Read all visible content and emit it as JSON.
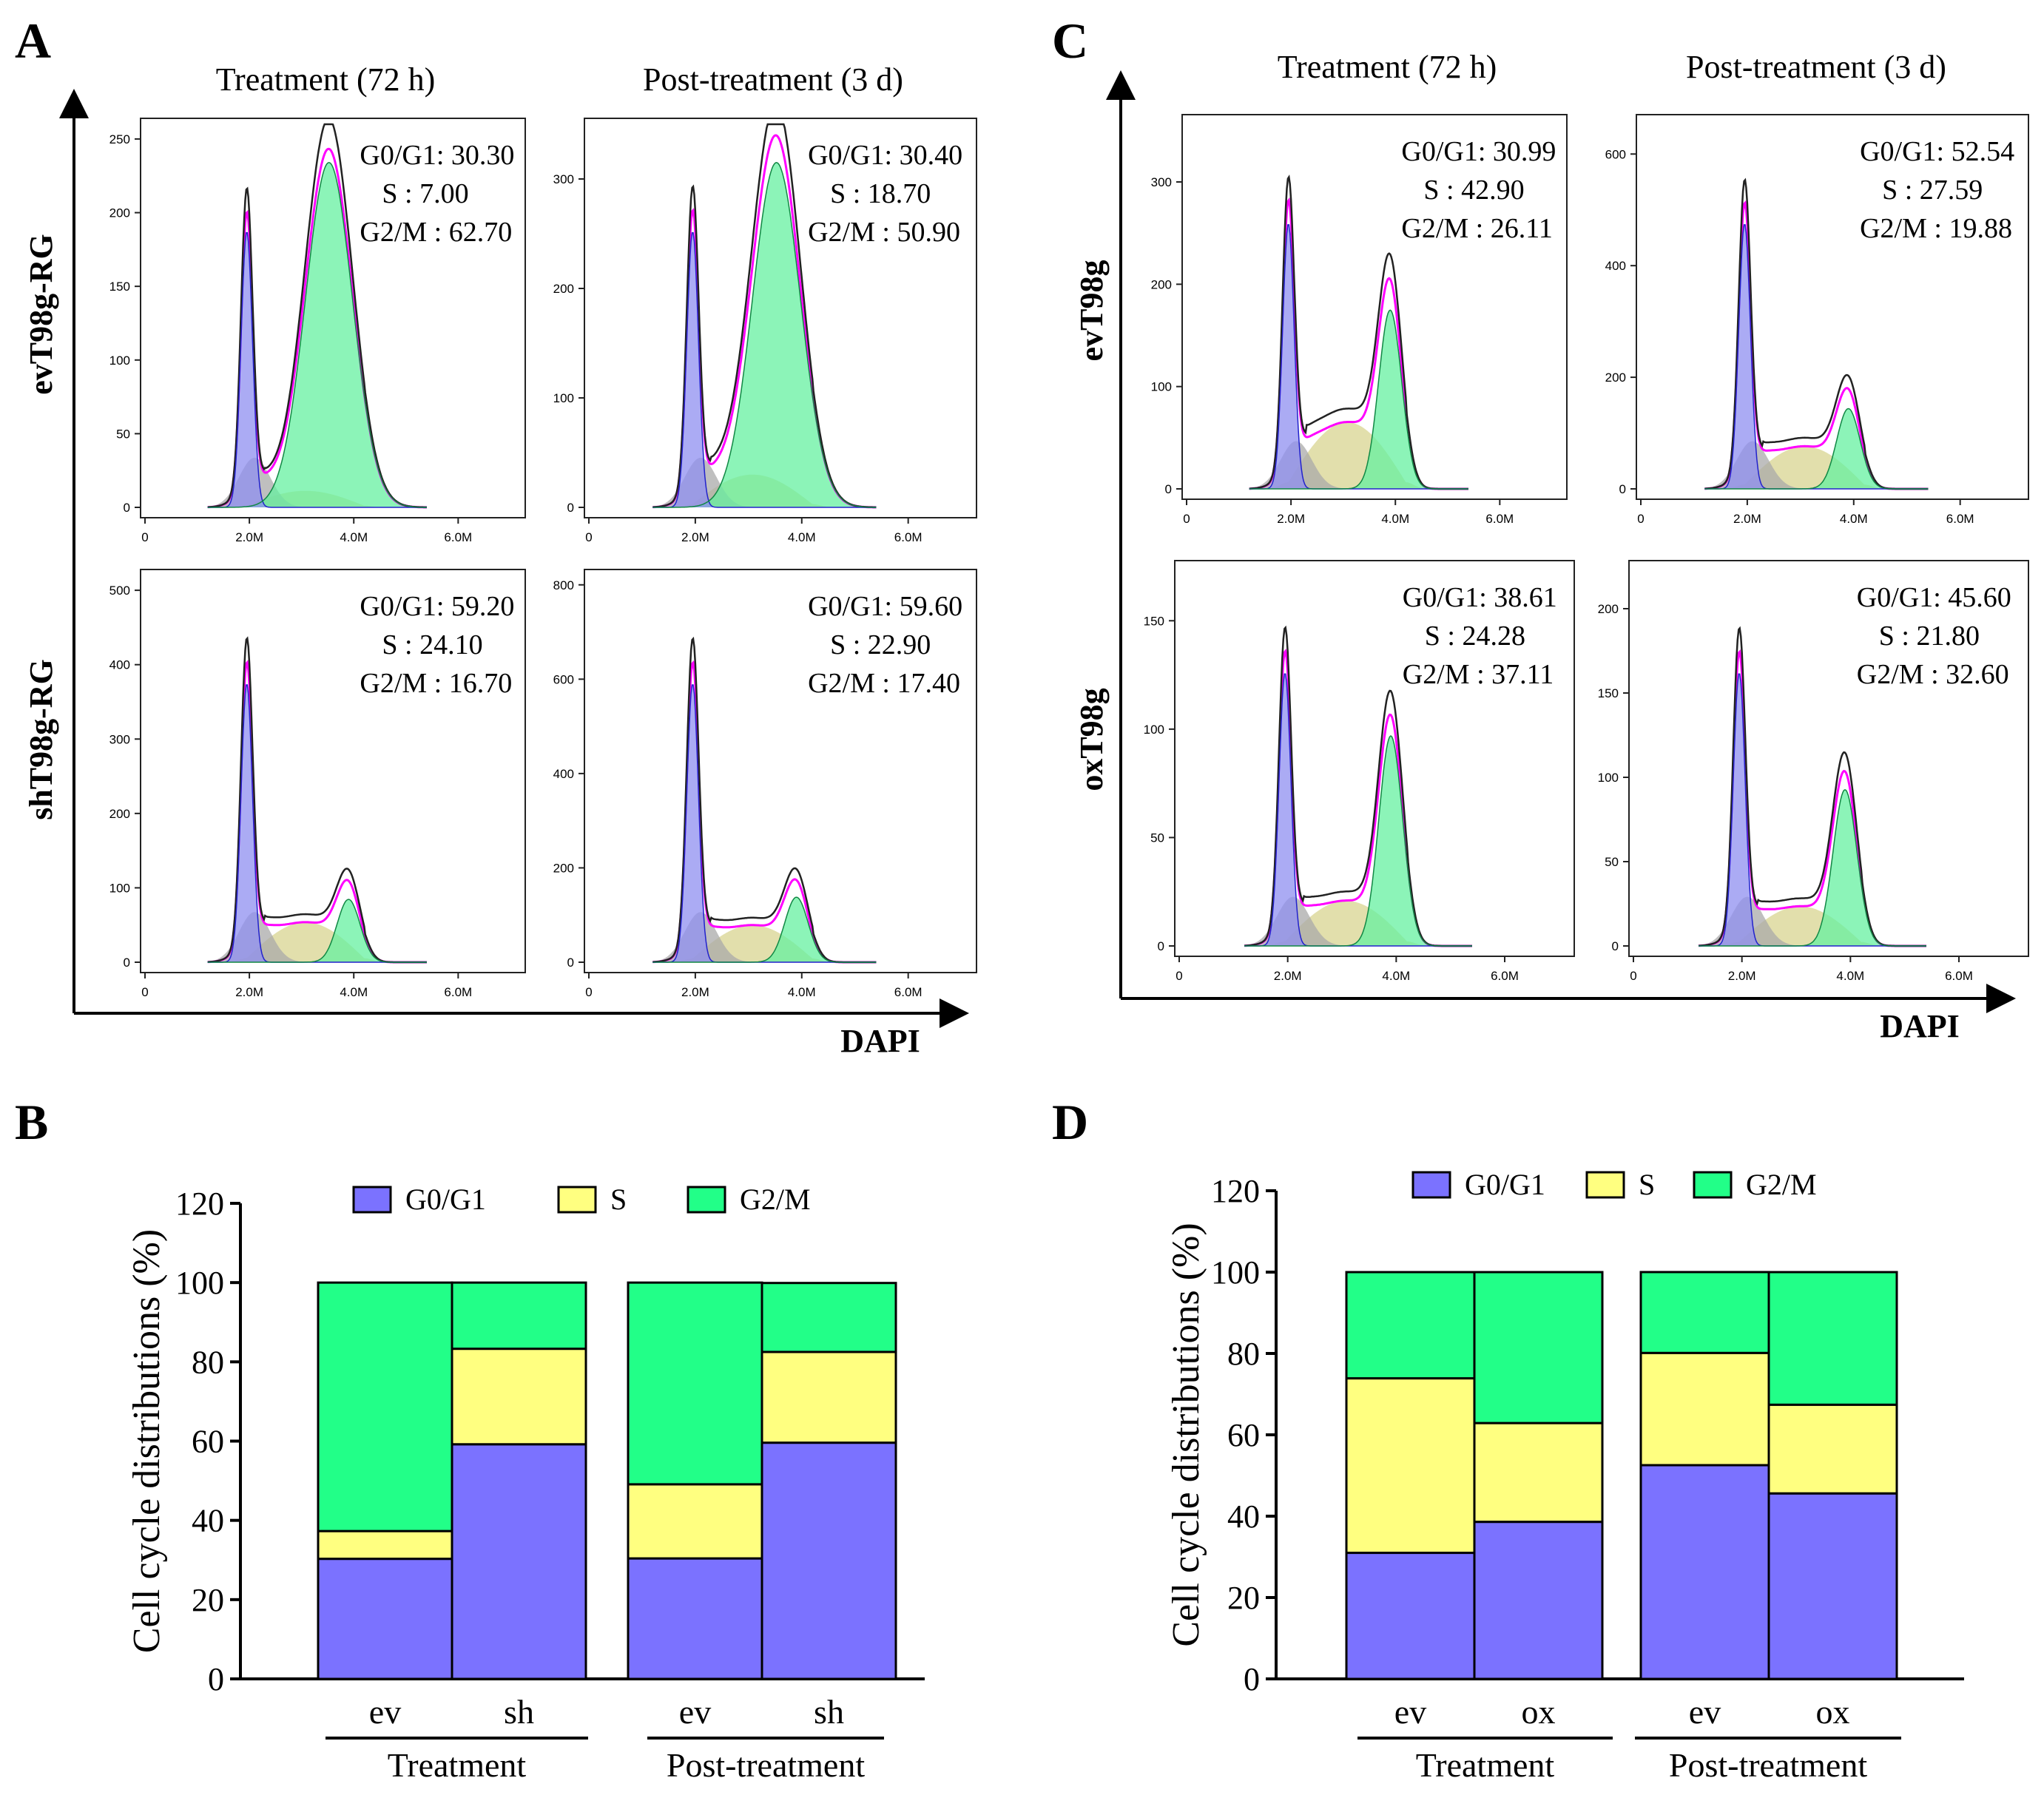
{
  "colors": {
    "g0g1": "#7b72ff",
    "s": "#ffff80",
    "g2m": "#22ff88",
    "fit_line": "#ff00ff",
    "raw_line": "#222222",
    "g0g1_fill": "#8f8ff0",
    "s_fill": "#d8d490",
    "g2m_fill": "#66f0a0",
    "debris_fill": "#aaaaaa"
  },
  "panel_a": {
    "letter": "A",
    "col_titles": [
      "Treatment (72 h)",
      "Post-treatment (3 d)"
    ],
    "row_labels": [
      "evT98g-RG",
      "shT98g-RG"
    ],
    "axis_label": "DAPI",
    "histograms": [
      {
        "g0g1": "30.30",
        "s": "7.00",
        "g2m": "62.70",
        "yticks": [
          0,
          50,
          100,
          150,
          200,
          250
        ],
        "ymax": 260
      },
      {
        "g0g1": "30.40",
        "s": "18.70",
        "g2m": "50.90",
        "yticks": [
          0,
          100,
          200,
          300
        ],
        "ymax": 350
      },
      {
        "g0g1": "59.20",
        "s": "24.10",
        "g2m": "16.70",
        "yticks": [
          0,
          100,
          200,
          300,
          400,
          500
        ],
        "ymax": 520
      },
      {
        "g0g1": "59.60",
        "s": "22.90",
        "g2m": "17.40",
        "yticks": [
          0,
          200,
          400,
          600,
          800
        ],
        "ymax": 820
      }
    ]
  },
  "panel_c": {
    "letter": "C",
    "col_titles": [
      "Treatment (72 h)",
      "Post-treatment (3 d)"
    ],
    "row_labels": [
      "evT98g",
      "oxT98g"
    ],
    "axis_label": "DAPI",
    "histograms": [
      {
        "g0g1": "30.99",
        "s": "42.90",
        "g2m": "26.11",
        "yticks": [
          0,
          100,
          200,
          300
        ],
        "ymax": 360
      },
      {
        "g0g1": "52.54",
        "s": "27.59",
        "g2m": "19.88",
        "yticks": [
          0,
          200,
          400,
          600
        ],
        "ymax": 660
      },
      {
        "g0g1": "38.61",
        "s": "24.28",
        "g2m": "37.11",
        "yticks": [
          0,
          50,
          100,
          150
        ],
        "ymax": 175
      },
      {
        "g0g1": "45.60",
        "s": "21.80",
        "g2m": "32.60",
        "yticks": [
          0,
          50,
          100,
          150,
          200
        ],
        "ymax": 225
      }
    ]
  },
  "histogram_labels": {
    "g0g1": "G0/G1",
    "s": "S",
    "g2m": "G2/M",
    "xticks": [
      "0",
      "2.0M",
      "4.0M",
      "6.0M"
    ]
  },
  "chart_data": [
    {
      "type": "bar",
      "stacked": true,
      "letter": "B",
      "categories": [
        "ev",
        "sh",
        "ev",
        "sh"
      ],
      "groups": [
        "Treatment",
        "Post-treatment"
      ],
      "series": [
        {
          "name": "G0/G1",
          "values": [
            30.3,
            59.2,
            30.4,
            59.6
          ]
        },
        {
          "name": "S",
          "values": [
            7.0,
            24.1,
            18.7,
            22.9
          ]
        },
        {
          "name": "G2/M",
          "values": [
            62.7,
            16.7,
            50.9,
            17.4
          ]
        }
      ],
      "ylabel": "Cell cycle distributions  (%)",
      "yticks": [
        0,
        20,
        40,
        60,
        80,
        100,
        120
      ],
      "ylim": [
        0,
        120
      ],
      "legend_position": "top"
    },
    {
      "type": "bar",
      "stacked": true,
      "letter": "D",
      "categories": [
        "ev",
        "ox",
        "ev",
        "ox"
      ],
      "groups": [
        "Treatment",
        "Post-treatment"
      ],
      "series": [
        {
          "name": "G0/G1",
          "values": [
            30.99,
            38.61,
            52.54,
            45.6
          ]
        },
        {
          "name": "S",
          "values": [
            42.9,
            24.28,
            27.59,
            21.8
          ]
        },
        {
          "name": "G2/M",
          "values": [
            26.11,
            37.11,
            19.88,
            32.6
          ]
        }
      ],
      "ylabel": "Cell cycle distributions  (%)",
      "yticks": [
        0,
        20,
        40,
        60,
        80,
        100,
        120
      ],
      "ylim": [
        0,
        120
      ],
      "legend_position": "top"
    }
  ]
}
